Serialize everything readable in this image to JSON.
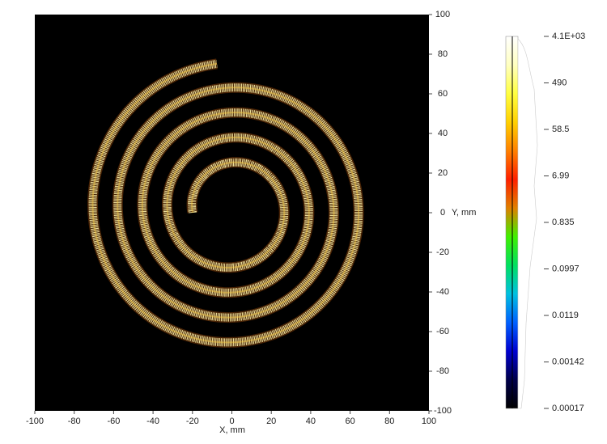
{
  "chart_data": {
    "type": "heatmap",
    "xlabel": "X, mm",
    "ylabel": "Y, mm",
    "xlim": [
      -100,
      100
    ],
    "ylim": [
      -100,
      100
    ],
    "xticks": [
      -100,
      -80,
      -60,
      -40,
      -20,
      0,
      20,
      40,
      60,
      80,
      100
    ],
    "yticks": [
      -100,
      -80,
      -60,
      -40,
      -20,
      0,
      20,
      40,
      60,
      80,
      100
    ],
    "background": "#000000",
    "colorbar": {
      "scale": "log",
      "lim": [
        0.00017,
        4100
      ],
      "ticks": [
        {
          "value": 4100,
          "label": "4.1E+03"
        },
        490,
        58.5,
        6.99,
        0.835,
        0.0997,
        0.0119,
        0.00142,
        0.00017
      ],
      "colors": [
        "#000000",
        "#00004a",
        "#0000d0",
        "#0060ff",
        "#00c0e0",
        "#00e060",
        "#40f000",
        "#e08000",
        "#ff2000",
        "#ff8000",
        "#ffd000",
        "#ffff40",
        "#ffffc0",
        "#ffffff"
      ]
    }
  }
}
